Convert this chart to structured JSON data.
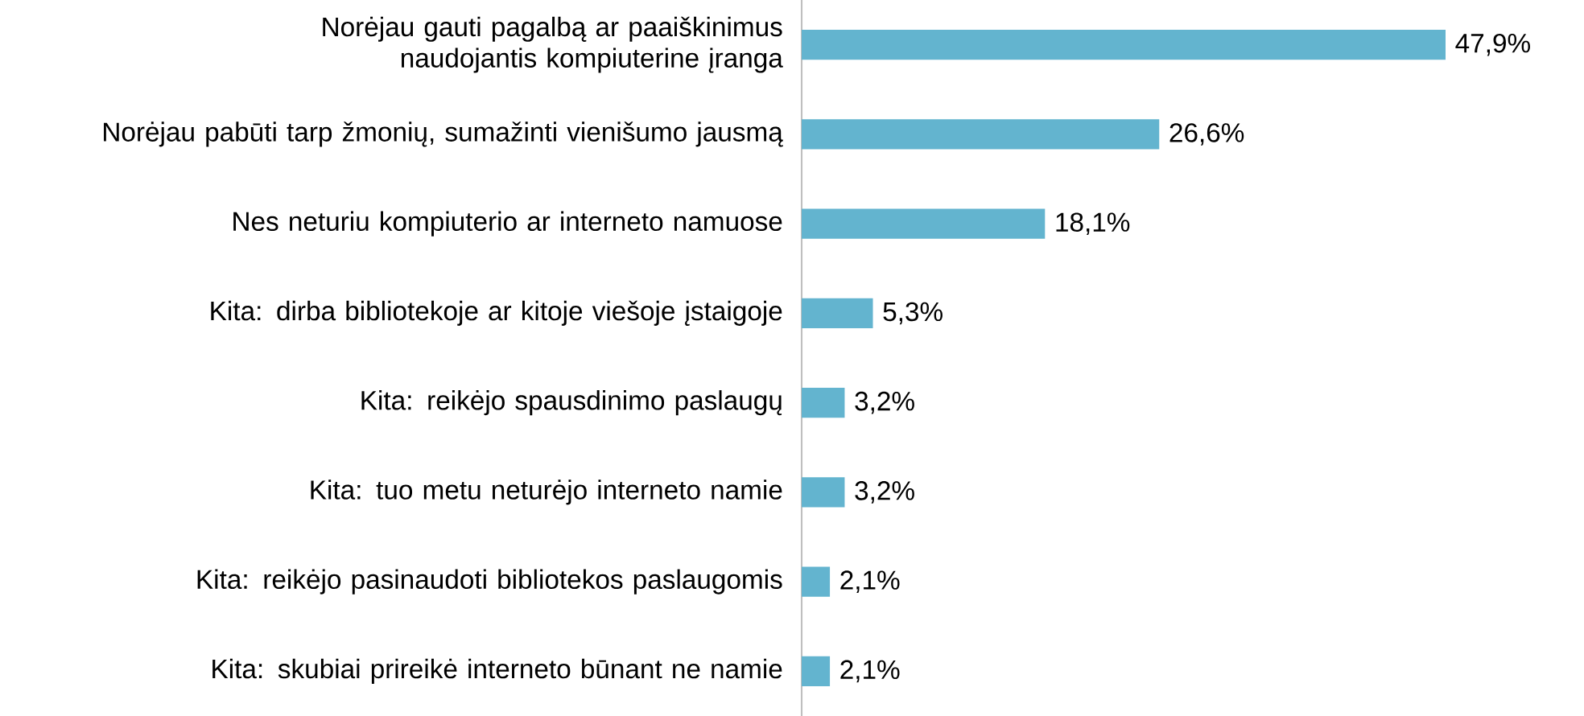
{
  "chart_data": {
    "type": "bar",
    "orientation": "horizontal",
    "color": "#63b4cf",
    "categories": [
      "Norėjau gauti pagalbą ar paaiškinimus naudojantis kompiuterine įranga",
      "Norėjau pabūti tarp žmonių, sumažinti vienišumo jausmą",
      "Nes neturiu kompiuterio ar interneto namuose",
      "Kita: dirba bibliotekoje ar kitoje viešoje įstaigoje",
      "Kita: reikėjo spausdinimo paslaugų",
      "Kita: tuo metu neturėjo interneto namie",
      "Kita: reikėjo pasinaudoti bibliotekos paslaugomis",
      "Kita: skubiai prireikė interneto būnant ne namie"
    ],
    "values": [
      47.9,
      26.6,
      18.1,
      5.3,
      3.2,
      3.2,
      2.1,
      2.1
    ],
    "value_labels": [
      "47,9%",
      "26,6%",
      "18,1%",
      "5,3%",
      "3,2%",
      "3,2%",
      "2,1%",
      "2,1%"
    ]
  }
}
